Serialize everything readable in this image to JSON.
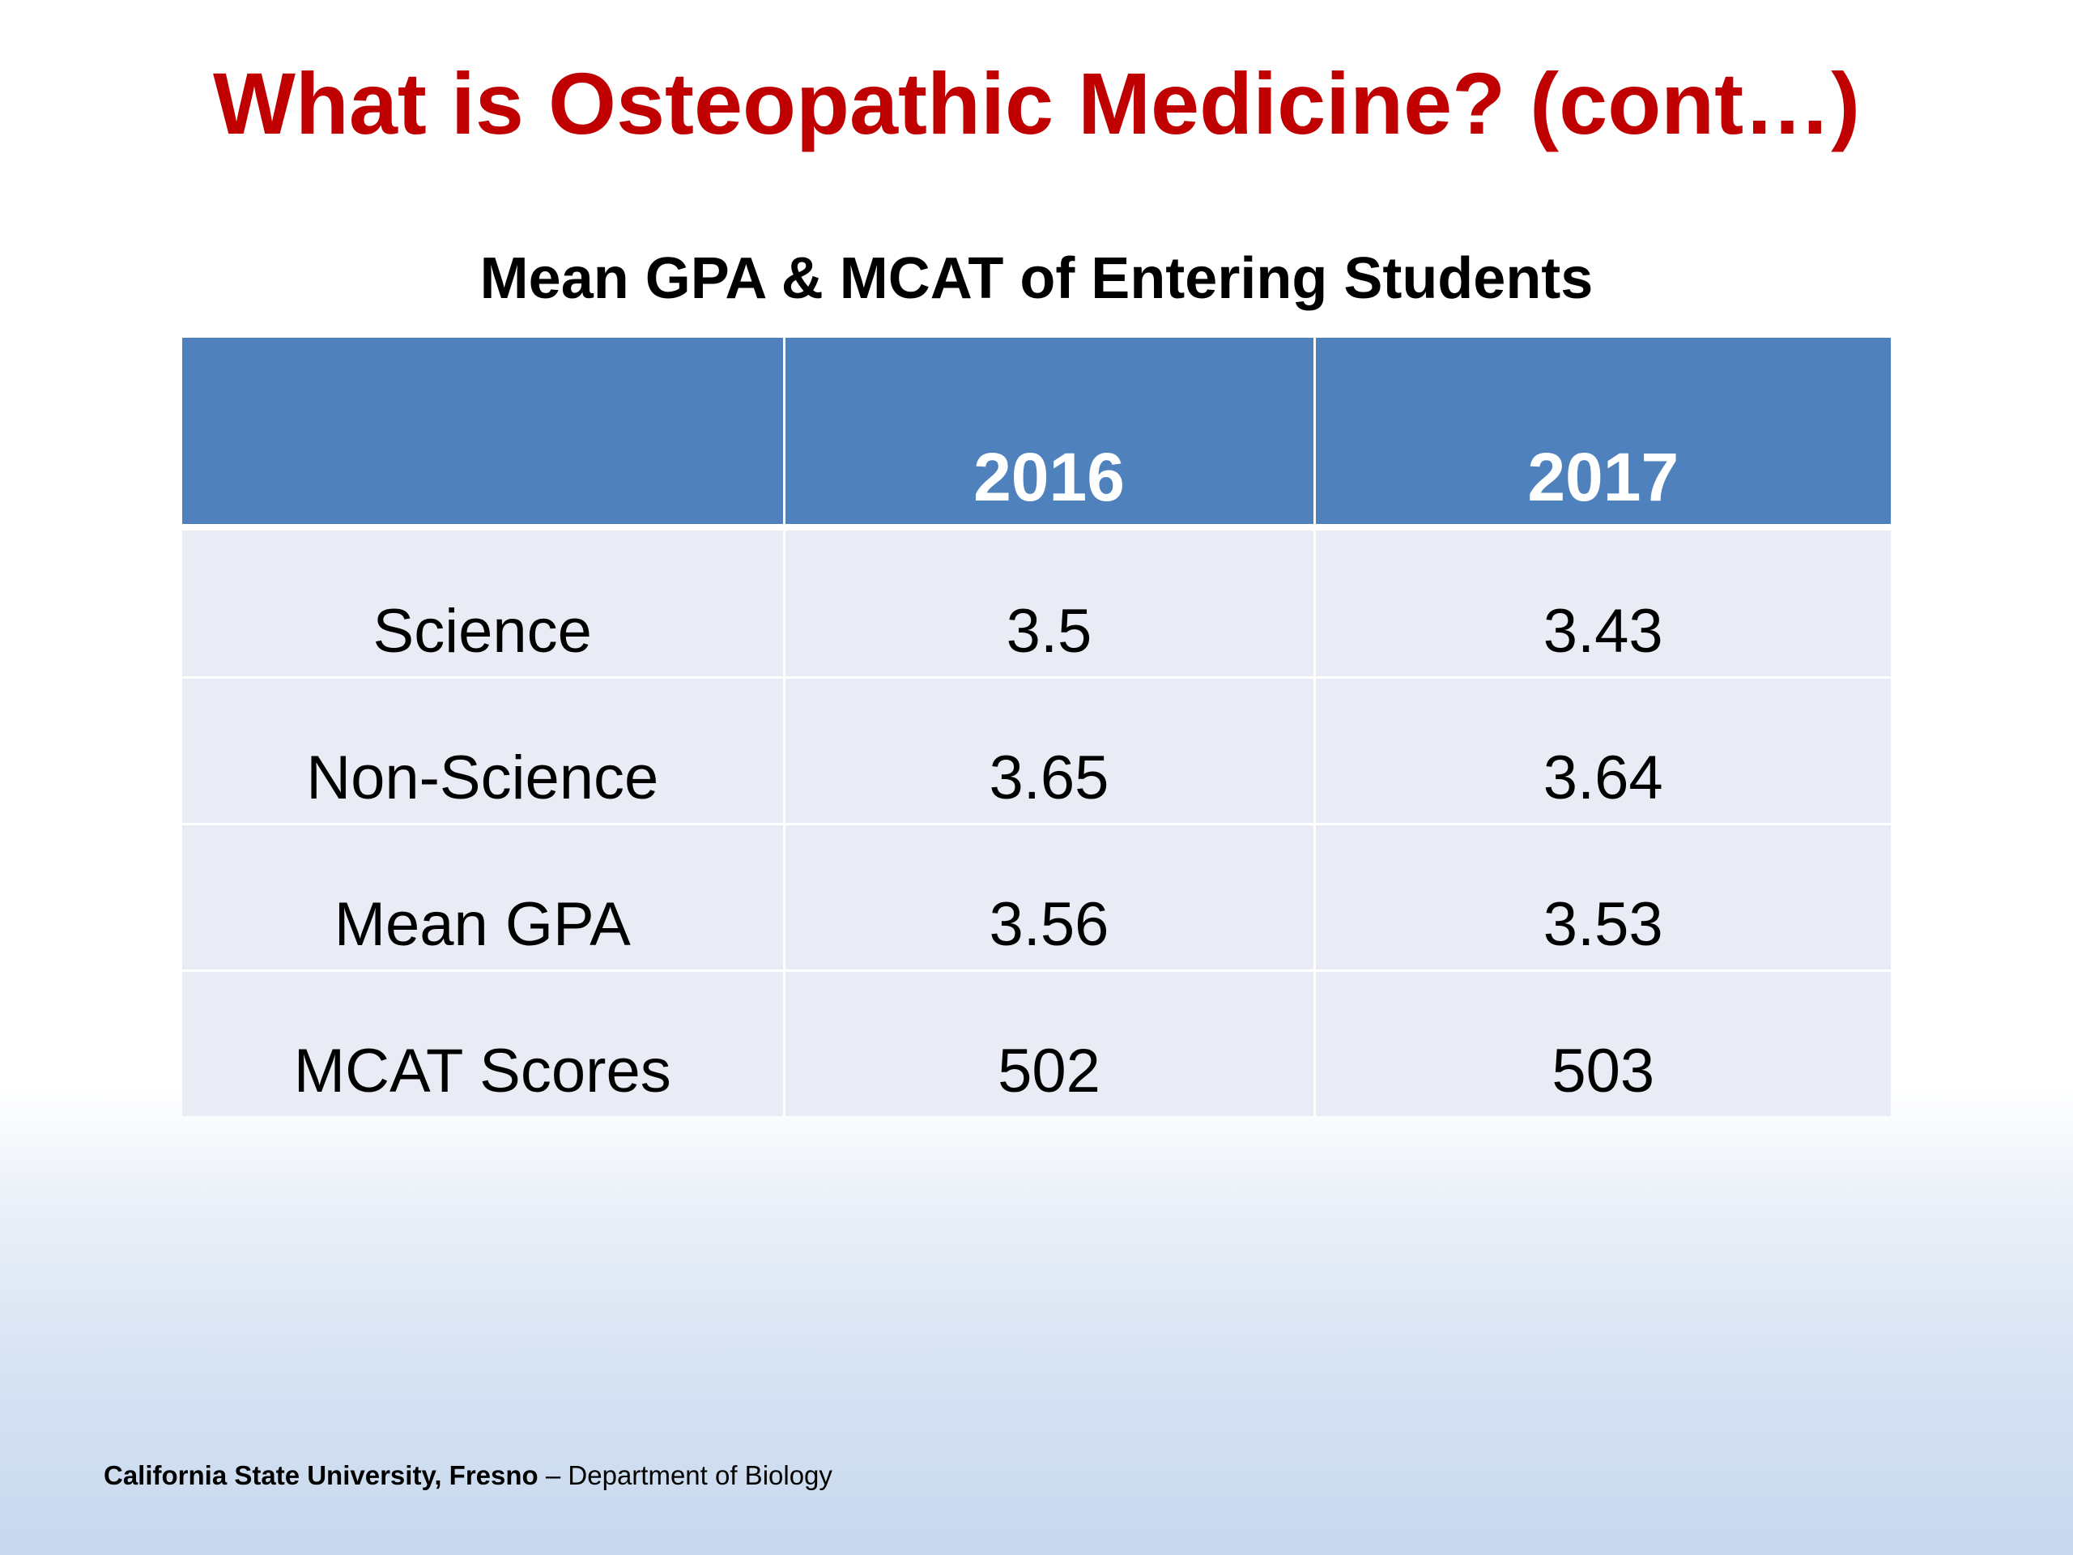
{
  "slide": {
    "title": "What is Osteopathic Medicine? (cont…)",
    "subtitle": "Mean GPA & MCAT of Entering Students",
    "table": {
      "headers": [
        "",
        "2016",
        "2017"
      ],
      "rows": [
        [
          "Science",
          "3.5",
          "3.43"
        ],
        [
          "Non-Science",
          "3.65",
          "3.64"
        ],
        [
          "Mean GPA",
          "3.56",
          "3.53"
        ],
        [
          "MCAT Scores",
          "502",
          "503"
        ]
      ]
    },
    "footer": {
      "institution": "California State University, Fresno",
      "separator": " – ",
      "department": "Department of Biology"
    }
  },
  "colors": {
    "title": "#c00000",
    "header_fill": "#4f81bd",
    "row_fill": "#e9ecf4",
    "background_bottom": "#c8d8ee"
  }
}
